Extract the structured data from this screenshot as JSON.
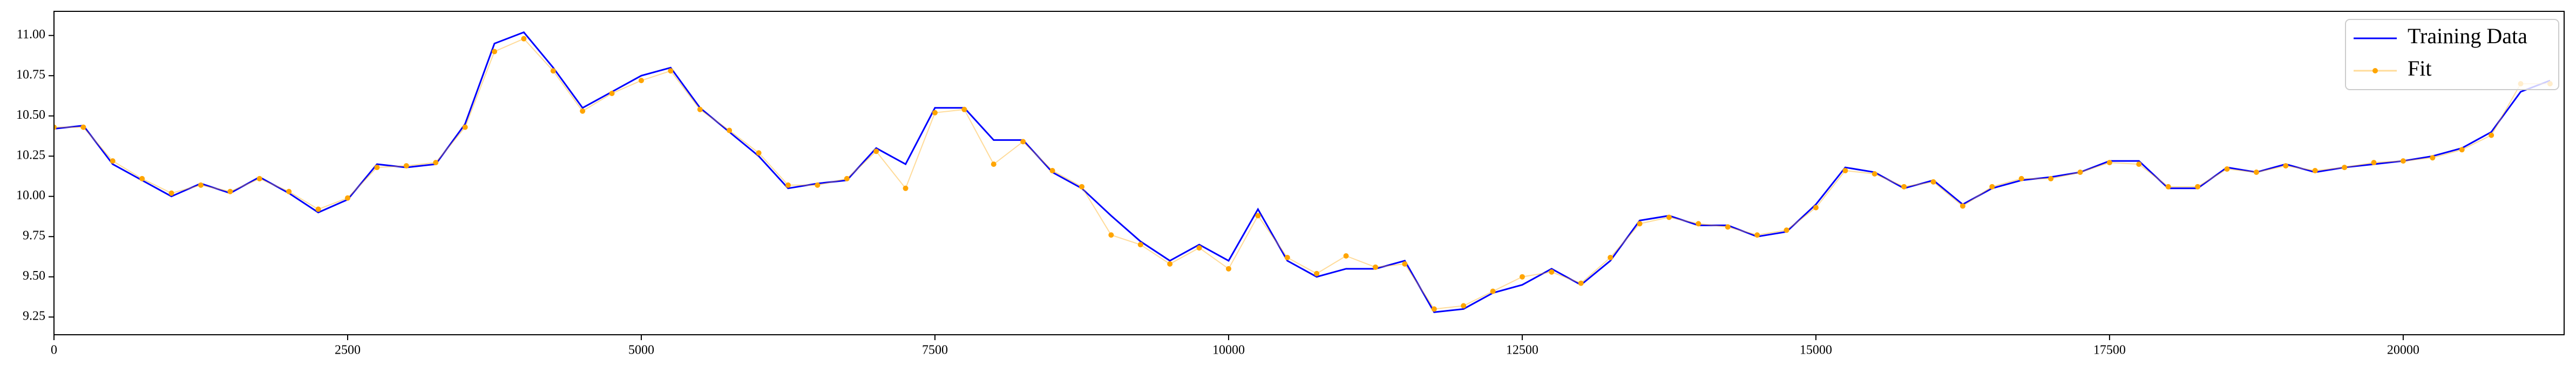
{
  "chart_data": {
    "type": "line",
    "x": [
      0,
      250,
      500,
      750,
      1000,
      1250,
      1500,
      1750,
      2000,
      2250,
      2500,
      2750,
      3000,
      3250,
      3500,
      3750,
      4000,
      4250,
      4500,
      4750,
      5000,
      5250,
      5500,
      5750,
      6000,
      6250,
      6500,
      6750,
      7000,
      7250,
      7500,
      7750,
      8000,
      8250,
      8500,
      8750,
      9000,
      9250,
      9500,
      9750,
      10000,
      10250,
      10500,
      10750,
      11000,
      11250,
      11500,
      11750,
      12000,
      12250,
      12500,
      12750,
      13000,
      13250,
      13500,
      13750,
      14000,
      14250,
      14500,
      14750,
      15000,
      15250,
      15500,
      15750,
      16000,
      16250,
      16500,
      16750,
      17000,
      17250,
      17500,
      17750,
      18000,
      18250,
      18500,
      18750,
      19000,
      19250,
      19500,
      19750,
      20000,
      20250,
      20500,
      20750,
      21000,
      21250
    ],
    "series": [
      {
        "name": "Training Data",
        "color": "#0000ff",
        "marker": false,
        "values": [
          10.42,
          10.44,
          10.2,
          10.1,
          10.0,
          10.08,
          10.02,
          10.12,
          10.02,
          9.9,
          9.98,
          10.2,
          10.18,
          10.2,
          10.45,
          10.95,
          11.02,
          10.8,
          10.55,
          10.65,
          10.75,
          10.8,
          10.55,
          10.4,
          10.25,
          10.05,
          10.08,
          10.1,
          10.3,
          10.2,
          10.55,
          10.55,
          10.35,
          10.35,
          10.15,
          10.05,
          9.88,
          9.72,
          9.6,
          9.7,
          9.6,
          9.92,
          9.6,
          9.5,
          9.55,
          9.55,
          9.6,
          9.28,
          9.3,
          9.4,
          9.45,
          9.55,
          9.45,
          9.6,
          9.85,
          9.88,
          9.82,
          9.82,
          9.75,
          9.78,
          9.95,
          10.18,
          10.15,
          10.05,
          10.1,
          9.95,
          10.05,
          10.1,
          10.12,
          10.15,
          10.22,
          10.22,
          10.05,
          10.05,
          10.18,
          10.15,
          10.2,
          10.15,
          10.18,
          10.2,
          10.22,
          10.25,
          10.3,
          10.4,
          10.65,
          10.72
        ]
      },
      {
        "name": "Fit",
        "color": "#ffa500",
        "marker": true,
        "values": [
          10.43,
          10.43,
          10.22,
          10.11,
          10.02,
          10.07,
          10.03,
          10.11,
          10.03,
          9.92,
          9.99,
          10.18,
          10.19,
          10.21,
          10.43,
          10.9,
          10.98,
          10.78,
          10.53,
          10.64,
          10.72,
          10.78,
          10.54,
          10.41,
          10.27,
          10.07,
          10.07,
          10.11,
          10.28,
          10.05,
          10.52,
          10.54,
          10.2,
          10.34,
          10.16,
          10.06,
          9.76,
          9.7,
          9.58,
          9.68,
          9.55,
          9.88,
          9.62,
          9.52,
          9.63,
          9.56,
          9.58,
          9.3,
          9.32,
          9.41,
          9.5,
          9.53,
          9.46,
          9.62,
          9.83,
          9.87,
          9.83,
          9.81,
          9.76,
          9.79,
          9.93,
          10.16,
          10.14,
          10.06,
          10.09,
          9.94,
          10.06,
          10.11,
          10.11,
          10.15,
          10.21,
          10.2,
          10.06,
          10.06,
          10.17,
          10.15,
          10.19,
          10.16,
          10.18,
          10.21,
          10.22,
          10.24,
          10.29,
          10.38,
          10.7,
          10.7
        ]
      }
    ],
    "xlim": [
      0,
      21370
    ],
    "ylim": [
      9.14,
      11.15
    ],
    "xticks": [
      0,
      2500,
      5000,
      7500,
      10000,
      12500,
      15000,
      17500,
      20000
    ],
    "yticks": [
      {
        "value": 9.25,
        "label": "9.25"
      },
      {
        "value": 9.5,
        "label": "9.50"
      },
      9.75,
      {
        "value": 10,
        "label": "10.00"
      },
      10.25,
      {
        "value": 10.5,
        "label": "10.50"
      },
      10.75,
      {
        "value": 11,
        "label": "11.00"
      }
    ],
    "legend": "upper right"
  }
}
